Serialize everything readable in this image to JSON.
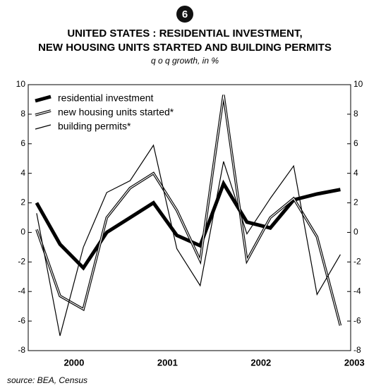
{
  "badge": "6",
  "chart_data": {
    "type": "line",
    "title": [
      "UNITED STATES : RESIDENTIAL INVESTMENT,",
      "NEW HOUSING UNITS STARTED AND BUILDING PERMITS"
    ],
    "subtitle": "q o q growth, in %",
    "x": [
      1999.6,
      1999.85,
      2000.1,
      2000.35,
      2000.6,
      2000.85,
      2001.1,
      2001.35,
      2001.6,
      2001.85,
      2002.1,
      2002.35,
      2002.6,
      2002.85
    ],
    "xlim": [
      1999.51,
      2002.96
    ],
    "xticks": [
      2000,
      2001,
      2002,
      2003
    ],
    "ylim": [
      -8,
      10
    ],
    "yticks": [
      -8,
      -6,
      -4,
      -2,
      0,
      2,
      4,
      6,
      8,
      10
    ],
    "series": [
      {
        "name": "residential investment",
        "color": "#000000",
        "style": "thick",
        "values": [
          2.0,
          -0.8,
          -2.4,
          0.0,
          1.0,
          2.0,
          -0.2,
          -0.9,
          3.3,
          0.7,
          0.3,
          2.2,
          2.6,
          2.9
        ]
      },
      {
        "name": "new housing units started*",
        "color": "#000000",
        "style": "double",
        "values": [
          0.2,
          -4.3,
          -5.2,
          1.0,
          3.0,
          4.0,
          1.5,
          -1.9,
          9.3,
          -1.9,
          1.0,
          2.3,
          -0.3,
          -6.3
        ]
      },
      {
        "name": "building permits*",
        "color": "#000000",
        "style": "thin",
        "values": [
          1.3,
          -7.0,
          -1.0,
          2.7,
          3.5,
          5.9,
          -1.1,
          -3.6,
          4.8,
          -0.1,
          2.3,
          4.5,
          -4.2,
          -1.5
        ]
      }
    ],
    "legend": "top-left",
    "source": "source: BEA, Census"
  }
}
